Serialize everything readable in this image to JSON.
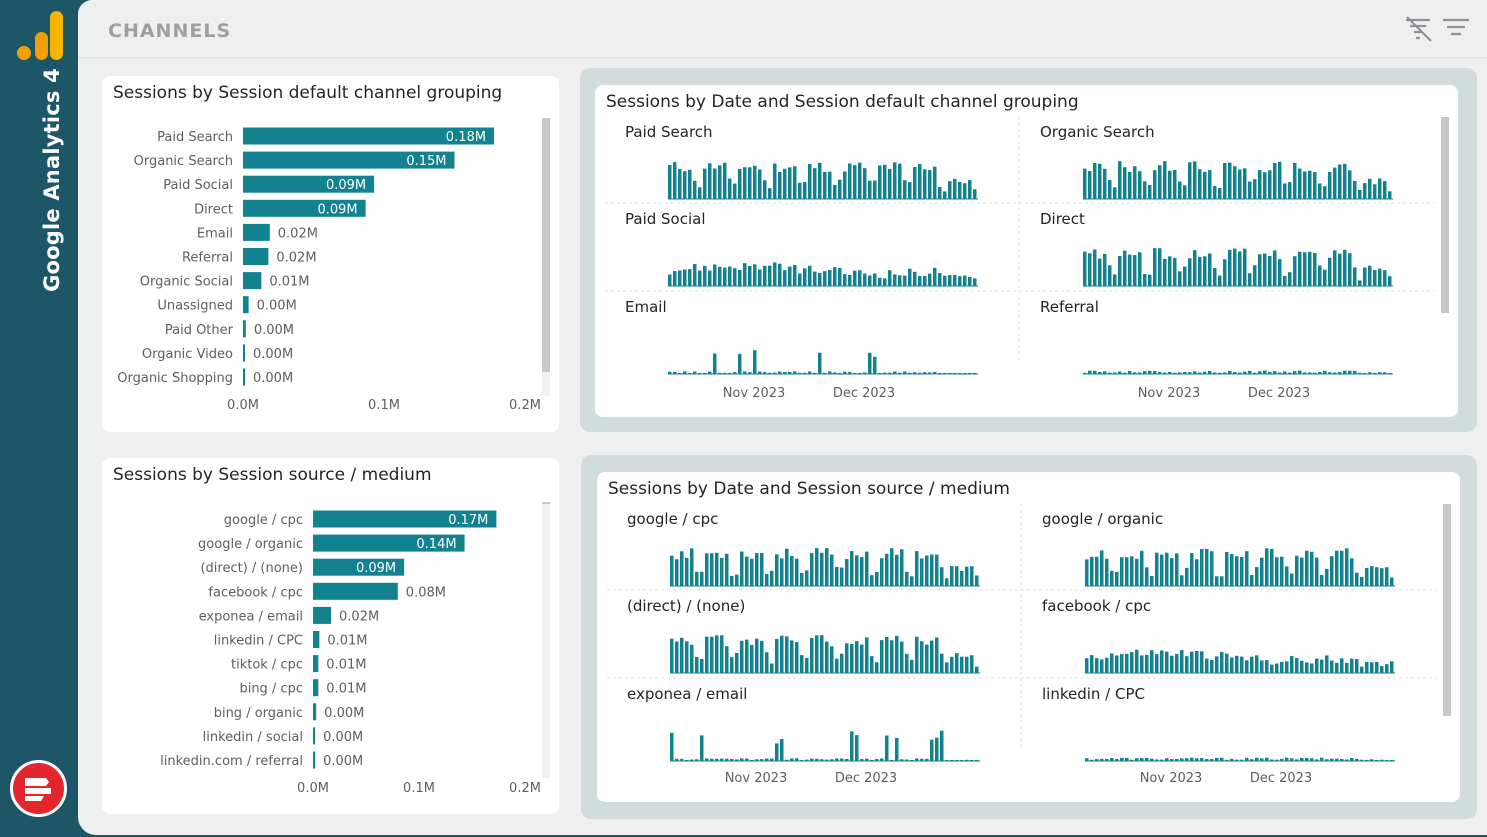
{
  "sidebar": {
    "app_name": "Google Analytics 4"
  },
  "header": {
    "title": "CHANNELS"
  },
  "colors": {
    "bar": "#128290",
    "sidebar": "#1d5666",
    "brand": "#e3262e",
    "logo_orange": "#f29f05"
  },
  "chart_data": [
    {
      "type": "bar",
      "orientation": "horizontal",
      "title": "Sessions by Session default channel grouping",
      "categories": [
        "Paid Search",
        "Organic Search",
        "Paid Social",
        "Direct",
        "Email",
        "Referral",
        "Organic Social",
        "Unassigned",
        "Paid Other",
        "Organic Video",
        "Organic Shopping"
      ],
      "values": [
        0.178,
        0.15,
        0.093,
        0.087,
        0.019,
        0.018,
        0.013,
        0.004,
        0.002,
        0.001,
        0.001
      ],
      "data_labels": [
        "0.18M",
        "0.15M",
        "0.09M",
        "0.09M",
        "0.02M",
        "0.02M",
        "0.01M",
        "0.00M",
        "0.00M",
        "0.00M",
        "0.00M"
      ],
      "x_ticks": [
        "0.0M",
        "0.1M",
        "0.2M"
      ],
      "xlim": [
        0,
        0.2
      ]
    },
    {
      "type": "bar",
      "orientation": "horizontal",
      "title": "Sessions by Session source / medium",
      "categories": [
        "google / cpc",
        "google / organic",
        "(direct) / (none)",
        "facebook / cpc",
        "exponea / email",
        "linkedin / CPC",
        "tiktok / cpc",
        "bing / cpc",
        "bing / organic",
        "linkedin / social",
        "linkedin.com / referral"
      ],
      "values": [
        0.173,
        0.143,
        0.086,
        0.08,
        0.017,
        0.006,
        0.005,
        0.005,
        0.003,
        0.002,
        0.002
      ],
      "data_labels": [
        "0.17M",
        "0.14M",
        "0.09M",
        "0.08M",
        "0.02M",
        "0.01M",
        "0.01M",
        "0.01M",
        "0.00M",
        "0.00M",
        "0.00M"
      ],
      "x_ticks": [
        "0.0M",
        "0.1M",
        "0.2M"
      ],
      "xlim": [
        0,
        0.2
      ]
    },
    {
      "type": "bar",
      "title": "Sessions by Date and Session default channel grouping",
      "small_multiples": [
        "Paid Search",
        "Organic Search",
        "Paid Social",
        "Direct",
        "Email",
        "Referral"
      ],
      "x_ticks": [
        "Nov 2023",
        "Dec 2023"
      ]
    },
    {
      "type": "bar",
      "title": "Sessions by Date and Session source / medium",
      "small_multiples": [
        "google / cpc",
        "google / organic",
        "(direct) / (none)",
        "facebook / cpc",
        "exponea / email",
        "linkedin / CPC"
      ],
      "x_ticks": [
        "Nov 2023",
        "Dec 2023"
      ]
    }
  ]
}
